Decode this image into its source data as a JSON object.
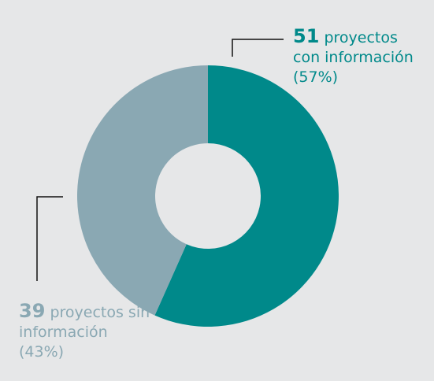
{
  "chart_data": {
    "type": "donut",
    "categories": [
      "proyectos con información",
      "proyectos sin información"
    ],
    "values": [
      51,
      39
    ],
    "percent_labels": [
      "(57%)",
      "(43%)"
    ],
    "colors": [
      "#00898a",
      "#8aa8b3"
    ]
  }
}
